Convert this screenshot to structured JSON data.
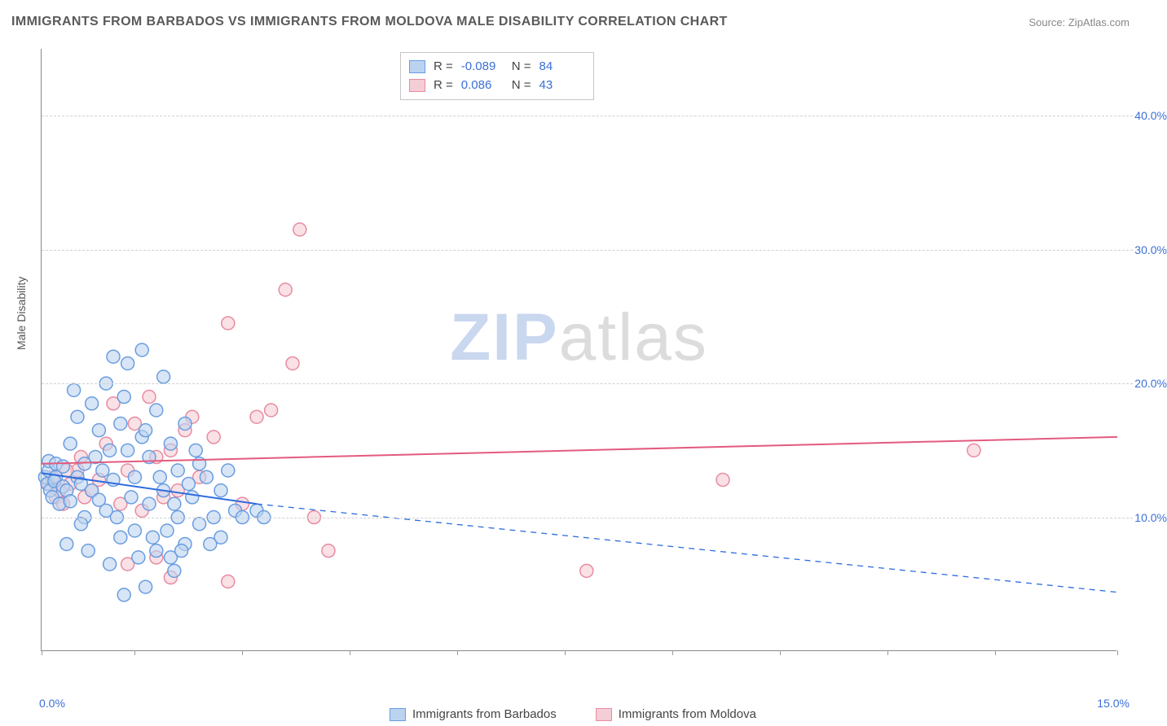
{
  "title": "IMMIGRANTS FROM BARBADOS VS IMMIGRANTS FROM MOLDOVA MALE DISABILITY CORRELATION CHART",
  "source": "Source: ZipAtlas.com",
  "y_axis_title": "Male Disability",
  "watermark": {
    "zip": "ZIP",
    "atlas": "atlas"
  },
  "chart": {
    "type": "scatter-correlation",
    "xlim": [
      0,
      15
    ],
    "ylim": [
      0,
      45
    ],
    "y_ticks": [
      10,
      20,
      30,
      40
    ],
    "y_tick_labels": [
      "10.0%",
      "20.0%",
      "30.0%",
      "40.0%"
    ],
    "x_ticks": [
      0,
      1.3,
      2.8,
      4.3,
      5.8,
      7.3,
      8.8,
      10.3,
      11.8,
      13.3,
      15
    ],
    "x_left_label": "0.0%",
    "x_right_label": "15.0%",
    "grid_color": "#d0d0d0",
    "background_color": "#ffffff",
    "marker_radius": 8,
    "marker_stroke_width": 1.5,
    "series": [
      {
        "name": "Immigrants from Barbados",
        "fill": "#bcd3f0",
        "stroke": "#6a9de0",
        "fill_opacity": 0.6,
        "R": "-0.089",
        "N": "84",
        "trend": {
          "y_at_x0": 13.3,
          "y_at_solid_end": 11.0,
          "solid_end_x": 3.0,
          "y_at_xmax": 4.4,
          "color": "#2d6cdf",
          "width": 2
        },
        "points": [
          [
            0.05,
            13.0
          ],
          [
            0.08,
            12.5
          ],
          [
            0.1,
            13.5
          ],
          [
            0.12,
            12.0
          ],
          [
            0.1,
            14.2
          ],
          [
            0.15,
            11.5
          ],
          [
            0.2,
            13.0
          ],
          [
            0.18,
            12.7
          ],
          [
            0.2,
            14.0
          ],
          [
            0.3,
            12.3
          ],
          [
            0.25,
            11.0
          ],
          [
            0.3,
            13.8
          ],
          [
            0.35,
            12.0
          ],
          [
            0.4,
            15.5
          ],
          [
            0.4,
            11.2
          ],
          [
            0.5,
            13.0
          ],
          [
            0.5,
            17.5
          ],
          [
            0.55,
            12.5
          ],
          [
            0.6,
            14.0
          ],
          [
            0.6,
            10.0
          ],
          [
            0.7,
            18.5
          ],
          [
            0.7,
            12.0
          ],
          [
            0.8,
            16.5
          ],
          [
            0.8,
            11.3
          ],
          [
            0.85,
            13.5
          ],
          [
            0.9,
            20.0
          ],
          [
            0.9,
            10.5
          ],
          [
            1.0,
            22.0
          ],
          [
            1.0,
            12.8
          ],
          [
            1.1,
            17.0
          ],
          [
            1.1,
            8.5
          ],
          [
            1.2,
            15.0
          ],
          [
            1.2,
            21.5
          ],
          [
            1.3,
            13.0
          ],
          [
            1.3,
            9.0
          ],
          [
            1.4,
            16.0
          ],
          [
            1.4,
            22.5
          ],
          [
            1.5,
            11.0
          ],
          [
            1.5,
            14.5
          ],
          [
            1.6,
            18.0
          ],
          [
            1.6,
            7.5
          ],
          [
            1.7,
            20.5
          ],
          [
            1.7,
            12.0
          ],
          [
            1.8,
            7.0
          ],
          [
            1.8,
            15.5
          ],
          [
            1.9,
            10.0
          ],
          [
            1.9,
            13.5
          ],
          [
            2.0,
            8.0
          ],
          [
            2.0,
            17.0
          ],
          [
            2.1,
            11.5
          ],
          [
            2.2,
            9.5
          ],
          [
            2.2,
            14.0
          ],
          [
            2.3,
            13.0
          ],
          [
            2.4,
            10.0
          ],
          [
            2.5,
            12.0
          ],
          [
            2.5,
            8.5
          ],
          [
            2.6,
            13.5
          ],
          [
            2.7,
            10.5
          ],
          [
            2.8,
            10.0
          ],
          [
            3.0,
            10.5
          ],
          [
            3.1,
            10.0
          ],
          [
            0.45,
            19.5
          ],
          [
            0.35,
            8.0
          ],
          [
            0.55,
            9.5
          ],
          [
            0.65,
            7.5
          ],
          [
            0.75,
            14.5
          ],
          [
            0.95,
            15.0
          ],
          [
            1.05,
            10.0
          ],
          [
            1.15,
            19.0
          ],
          [
            1.25,
            11.5
          ],
          [
            1.35,
            7.0
          ],
          [
            1.45,
            16.5
          ],
          [
            1.55,
            8.5
          ],
          [
            1.65,
            13.0
          ],
          [
            1.75,
            9.0
          ],
          [
            1.85,
            11.0
          ],
          [
            1.95,
            7.5
          ],
          [
            2.05,
            12.5
          ],
          [
            2.15,
            15.0
          ],
          [
            2.35,
            8.0
          ],
          [
            1.15,
            4.2
          ],
          [
            1.45,
            4.8
          ],
          [
            1.85,
            6.0
          ],
          [
            0.95,
            6.5
          ]
        ]
      },
      {
        "name": "Immigrants from Moldova",
        "fill": "#f5cdd6",
        "stroke": "#e88ba1",
        "fill_opacity": 0.6,
        "R": "0.086",
        "N": "43",
        "trend": {
          "y_at_x0": 14.0,
          "y_at_xmax": 16.0,
          "color": "#e35a7f",
          "width": 2
        },
        "points": [
          [
            0.1,
            12.5
          ],
          [
            0.15,
            13.0
          ],
          [
            0.2,
            11.5
          ],
          [
            0.25,
            12.0
          ],
          [
            0.3,
            11.0
          ],
          [
            0.4,
            12.5
          ],
          [
            0.5,
            13.5
          ],
          [
            0.6,
            11.5
          ],
          [
            0.7,
            12.0
          ],
          [
            0.8,
            12.8
          ],
          [
            1.0,
            18.5
          ],
          [
            1.1,
            11.0
          ],
          [
            1.2,
            13.5
          ],
          [
            1.3,
            17.0
          ],
          [
            1.4,
            10.5
          ],
          [
            1.5,
            19.0
          ],
          [
            1.6,
            14.5
          ],
          [
            1.7,
            11.5
          ],
          [
            1.8,
            15.0
          ],
          [
            1.9,
            12.0
          ],
          [
            2.0,
            16.5
          ],
          [
            2.2,
            13.0
          ],
          [
            2.4,
            16.0
          ],
          [
            2.6,
            24.5
          ],
          [
            2.8,
            11.0
          ],
          [
            3.0,
            17.5
          ],
          [
            3.2,
            18.0
          ],
          [
            3.4,
            27.0
          ],
          [
            3.5,
            21.5
          ],
          [
            3.6,
            31.5
          ],
          [
            3.8,
            10.0
          ],
          [
            4.0,
            7.5
          ],
          [
            2.6,
            5.2
          ],
          [
            1.6,
            7.0
          ],
          [
            1.8,
            5.5
          ],
          [
            1.2,
            6.5
          ],
          [
            7.6,
            6.0
          ],
          [
            9.5,
            12.8
          ],
          [
            13.0,
            15.0
          ],
          [
            0.35,
            13.5
          ],
          [
            0.55,
            14.5
          ],
          [
            0.9,
            15.5
          ],
          [
            2.1,
            17.5
          ]
        ]
      }
    ]
  },
  "stats_legend": {
    "rows": [
      {
        "series_idx": 0,
        "R_label": "R =",
        "N_label": "N ="
      },
      {
        "series_idx": 1,
        "R_label": "R =",
        "N_label": "N ="
      }
    ]
  },
  "bottom_legend": {
    "items": [
      {
        "series_idx": 0
      },
      {
        "series_idx": 1
      }
    ]
  }
}
